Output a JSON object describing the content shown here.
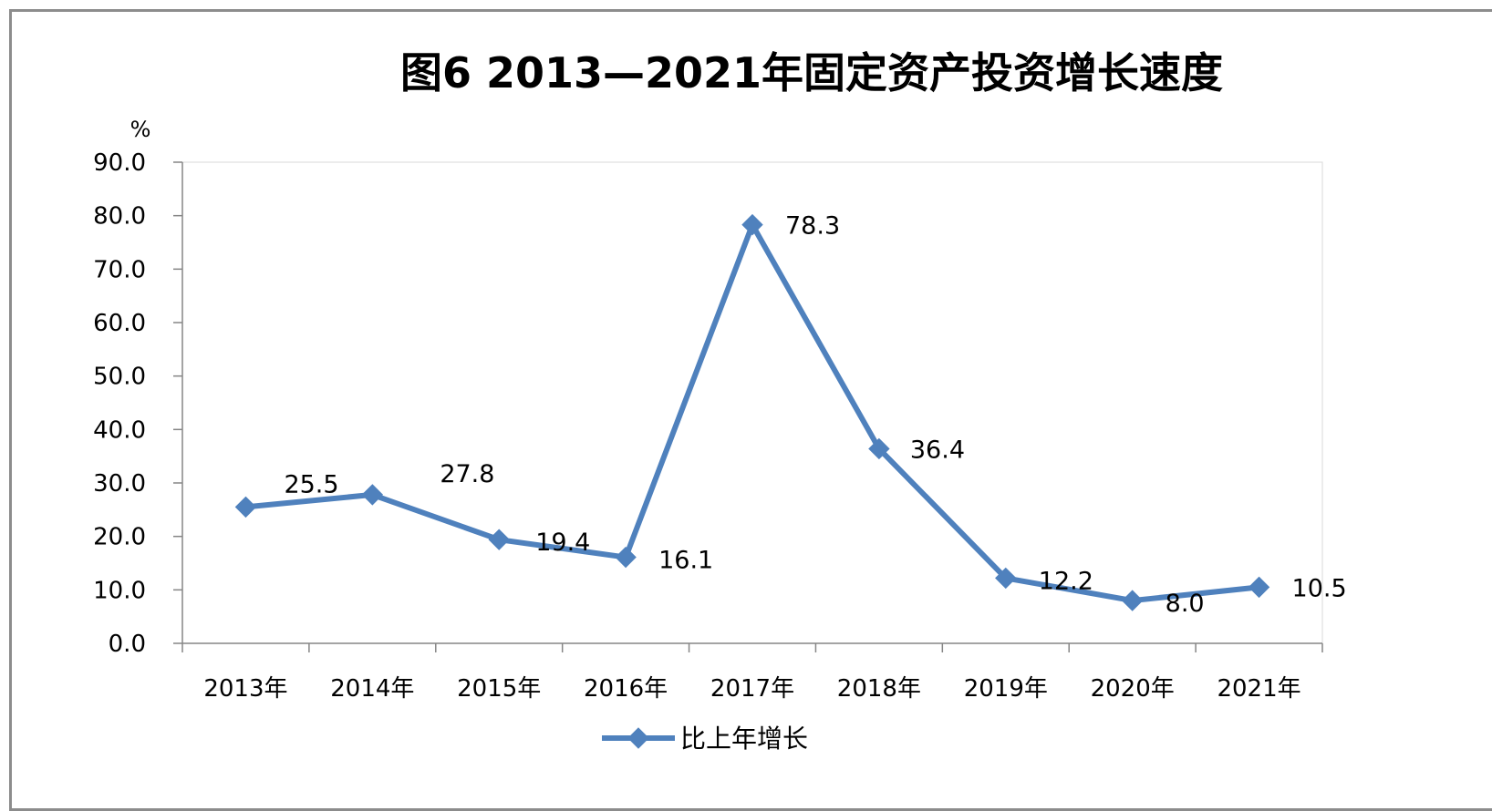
{
  "chart_data": {
    "type": "line",
    "title": "图6  2013—2021年固定资产投资增长速度",
    "ylabel": "%",
    "xlabel": "",
    "ylim": [
      0,
      90
    ],
    "yticks": [
      "0.0",
      "10.0",
      "20.0",
      "30.0",
      "40.0",
      "50.0",
      "60.0",
      "70.0",
      "80.0",
      "90.0"
    ],
    "categories": [
      "2013年",
      "2014年",
      "2015年",
      "2016年",
      "2017年",
      "2018年",
      "2019年",
      "2020年",
      "2021年"
    ],
    "series": [
      {
        "name": "比上年增长",
        "values": [
          25.5,
          27.8,
          19.4,
          16.1,
          78.3,
          36.4,
          12.2,
          8.0,
          10.5
        ],
        "labels": [
          "25.5",
          "27.8",
          "19.4",
          "16.1",
          "78.3",
          "36.4",
          "12.2",
          "8.0",
          "10.5"
        ],
        "color": "#4f81bd",
        "marker": "diamond"
      }
    ],
    "grid": false,
    "legend": "bottom"
  }
}
